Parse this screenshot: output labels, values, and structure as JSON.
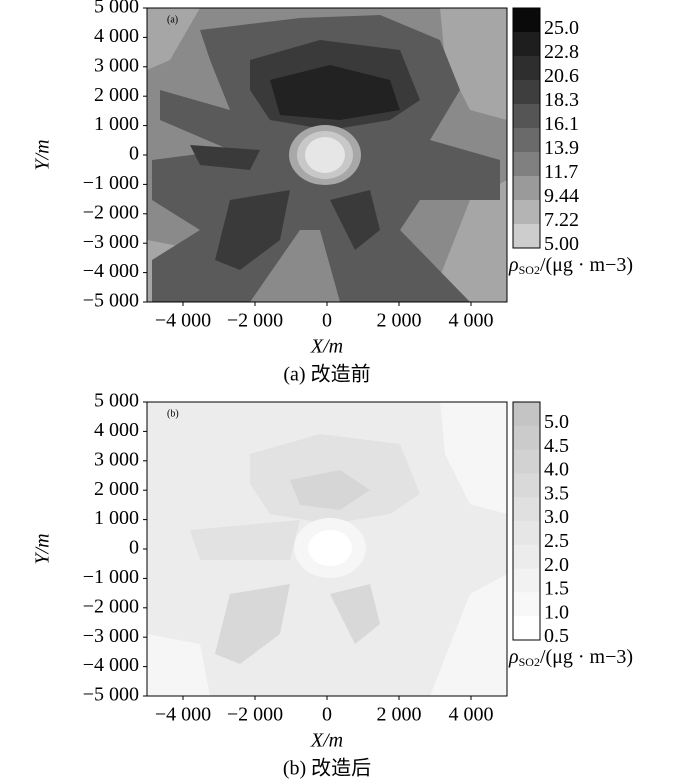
{
  "chart_data": [
    {
      "type": "contour",
      "panel_label": "(a)",
      "caption": "(a) 改造前",
      "xlabel": "X/m",
      "ylabel": "Y/m",
      "xlim": [
        -5000,
        5000
      ],
      "ylim": [
        -5000,
        5000
      ],
      "xticks": [
        {
          "value": -4000,
          "label": "−4 000"
        },
        {
          "value": -2000,
          "label": "−2 000"
        },
        0,
        {
          "value": 2000,
          "label": "2 000"
        },
        {
          "value": 4000,
          "label": "4 000"
        }
      ],
      "yticks": [
        {
          "value": 5000,
          "label": "5 000"
        },
        {
          "value": 4000,
          "label": "4 000"
        },
        {
          "value": 3000,
          "label": "3 000"
        },
        {
          "value": 2000,
          "label": "2 000"
        },
        {
          "value": 1000,
          "label": "1 000"
        },
        0,
        {
          "value": -1000,
          "label": "−1 000"
        },
        {
          "value": -2000,
          "label": "−2 000"
        },
        {
          "value": -3000,
          "label": "−3 000"
        },
        {
          "value": -4000,
          "label": "−4 000"
        },
        {
          "value": -5000,
          "label": "−5 000"
        }
      ],
      "colorbar": {
        "symbol": "ρ",
        "subscript": "SO2",
        "unit": "/(μg · m−3)",
        "ticks": [
          {
            "value": 25,
            "label": "25.0"
          },
          22.8,
          20.6,
          18.3,
          16.1,
          13.9,
          11.7,
          9.44,
          7.22,
          {
            "value": 5,
            "label": "5.00"
          }
        ],
        "colors": [
          "#0a0a0a",
          "#1e1e1e",
          "#2e2e2e",
          "#3e3e3e",
          "#555555",
          "#6a6a6a",
          "#808080",
          "#9a9a9a",
          "#b4b4b4",
          "#cdcdcd"
        ]
      }
    },
    {
      "type": "contour",
      "panel_label": "(b)",
      "caption": "(b) 改造后",
      "xlabel": "X/m",
      "ylabel": "Y/m",
      "xlim": [
        -5000,
        5000
      ],
      "ylim": [
        -5000,
        5000
      ],
      "xticks": [
        {
          "value": -4000,
          "label": "−4 000"
        },
        {
          "value": -2000,
          "label": "−2 000"
        },
        0,
        {
          "value": 2000,
          "label": "2 000"
        },
        {
          "value": 4000,
          "label": "4 000"
        }
      ],
      "yticks": [
        {
          "value": 5000,
          "label": "5 000"
        },
        {
          "value": 4000,
          "label": "4 000"
        },
        {
          "value": 3000,
          "label": "3 000"
        },
        {
          "value": 2000,
          "label": "2 000"
        },
        {
          "value": 1000,
          "label": "1 000"
        },
        0,
        {
          "value": -1000,
          "label": "−1 000"
        },
        {
          "value": -2000,
          "label": "−2 000"
        },
        {
          "value": -3000,
          "label": "−3 000"
        },
        {
          "value": -4000,
          "label": "−4 000"
        },
        {
          "value": -5000,
          "label": "−5 000"
        }
      ],
      "colorbar": {
        "symbol": "ρ",
        "subscript": "SO2",
        "unit": "/(μg · m−3)",
        "ticks": [
          {
            "value": 5,
            "label": "5.0"
          },
          4.5,
          {
            "value": 4,
            "label": "4.0"
          },
          3.5,
          {
            "value": 3,
            "label": "3.0"
          },
          2.5,
          {
            "value": 2,
            "label": "2.0"
          },
          1.5,
          {
            "value": 1,
            "label": "1.0"
          },
          0.5
        ],
        "colors": [
          "#c4c4c4",
          "#cbcbcb",
          "#d2d2d2",
          "#d9d9d9",
          "#e0e0e0",
          "#e6e6e6",
          "#ececec",
          "#f2f2f2",
          "#f8f8f8",
          "#ffffff"
        ]
      }
    }
  ]
}
